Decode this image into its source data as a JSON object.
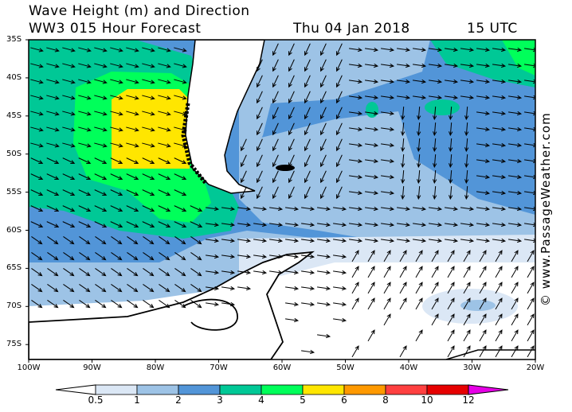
{
  "header": {
    "title": "Wave Height (m) and Direction",
    "subtitle": "WW3 015 Hour Forecast",
    "date": "Thu 04 Jan 2018",
    "time": "15 UTC"
  },
  "credit": "© www.PassageWeather.com",
  "map": {
    "lat_labels": [
      "35S",
      "40S",
      "45S",
      "50S",
      "55S",
      "60S",
      "65S",
      "70S",
      "75S"
    ],
    "lon_labels": [
      "100W",
      "90W",
      "80W",
      "70W",
      "60W",
      "50W",
      "40W",
      "30W",
      "20W"
    ],
    "region": "South Atlantic / Drake Passage / Antarctic Peninsula",
    "land_color": "#ffffff",
    "coast_color": "#000000"
  },
  "legend": {
    "unit": "m",
    "ticks": [
      "0.5",
      "1",
      "2",
      "3",
      "4",
      "5",
      "6",
      "8",
      "10",
      "12"
    ],
    "colors": [
      "#ffffff",
      "#dbe7f5",
      "#9dc3e6",
      "#5295d8",
      "#00c896",
      "#00ff5a",
      "#ffe600",
      "#ff9900",
      "#ff4040",
      "#e60000",
      "#e600e6"
    ]
  }
}
